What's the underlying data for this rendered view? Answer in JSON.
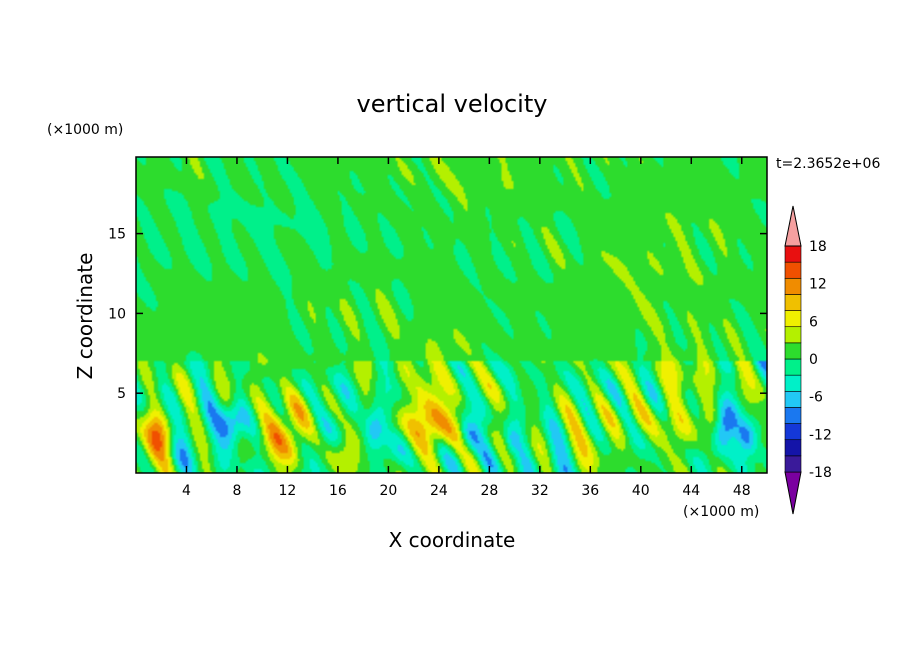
{
  "chart_data": {
    "type": "heatmap",
    "title": "vertical velocity",
    "xlabel": "X coordinate",
    "ylabel": "Z coordinate",
    "x_unit": "(×1000 m)",
    "y_unit": "(×1000 m)",
    "time_label": "t=2.3652e+06",
    "xlim": [
      0,
      50
    ],
    "ylim": [
      0,
      19.8
    ],
    "x_ticks": [
      4,
      8,
      12,
      16,
      20,
      24,
      28,
      32,
      36,
      40,
      44,
      48
    ],
    "y_ticks": [
      5,
      10,
      15
    ],
    "colorbar": {
      "levels": [
        -21,
        -18,
        -15,
        -12,
        -9,
        -6,
        -3,
        0,
        3,
        6,
        9,
        12,
        15,
        18,
        21
      ],
      "tick_labels": [
        -18,
        -12,
        -6,
        0,
        6,
        12,
        18
      ],
      "colors": [
        "#7a00a0",
        "#3a1a9a",
        "#1414a8",
        "#1438d8",
        "#1a78f0",
        "#22c8f5",
        "#00f0c8",
        "#00f08a",
        "#2ddc2d",
        "#b4f000",
        "#f0f000",
        "#f0c000",
        "#f08c00",
        "#f05000",
        "#e81010",
        "#f5a0a0"
      ],
      "extend": "both"
    },
    "background_value": 0,
    "features": [
      {
        "x": 0.0,
        "z": 19.0,
        "sx": 30,
        "sz": 2.0,
        "v": 1.5
      },
      {
        "x": 10,
        "z": 17.0,
        "sx": 6.0,
        "sz": 2.2,
        "v": -1.0
      },
      {
        "x": 28,
        "z": 18.0,
        "sx": 5.0,
        "sz": 3.5,
        "v": 1.2
      },
      {
        "x": 43,
        "z": 16.5,
        "sx": 4.0,
        "sz": 2.5,
        "v": 1.0
      },
      {
        "x": 5,
        "z": 9.5,
        "sx": 5.0,
        "sz": 2.0,
        "v": 1.4
      },
      {
        "x": 18,
        "z": 10.5,
        "sx": 5.0,
        "sz": 2.5,
        "v": 1.3
      },
      {
        "x": 33,
        "z": 9.5,
        "sx": 6.0,
        "sz": 2.0,
        "v": 1.2
      },
      {
        "x": 45,
        "z": 11.5,
        "sx": 5.0,
        "sz": 3.0,
        "v": 1.4
      },
      {
        "x": 38,
        "z": 12.5,
        "sx": 3.0,
        "sz": 2.0,
        "v": 1.3
      },
      {
        "x": 1.7,
        "z": 2.2,
        "sx": 1.0,
        "sz": 1.2,
        "v": 13
      },
      {
        "x": 7.6,
        "z": 3.0,
        "sx": 0.7,
        "sz": 1.0,
        "v": -11
      },
      {
        "x": 12.0,
        "z": 2.6,
        "sx": 1.3,
        "sz": 1.3,
        "v": 12
      },
      {
        "x": 17.0,
        "z": 1.6,
        "sx": 0.8,
        "sz": 1.0,
        "v": 8
      },
      {
        "x": 19.0,
        "z": 3.0,
        "sx": 0.6,
        "sz": 1.0,
        "v": -10
      },
      {
        "x": 23.2,
        "z": 3.2,
        "sx": 1.4,
        "sz": 1.5,
        "v": 13
      },
      {
        "x": 26.3,
        "z": 2.2,
        "sx": 0.6,
        "sz": 0.8,
        "v": -8
      },
      {
        "x": 29.7,
        "z": 2.0,
        "sx": 0.5,
        "sz": 0.7,
        "v": -6
      },
      {
        "x": 36.0,
        "z": 2.0,
        "sx": 2.5,
        "sz": 1.2,
        "v": 4
      },
      {
        "x": 42.5,
        "z": 3.0,
        "sx": 2.5,
        "sz": 1.5,
        "v": 5
      },
      {
        "x": 46.5,
        "z": 2.6,
        "sx": 0.6,
        "sz": 1.0,
        "v": -14
      },
      {
        "x": 48.5,
        "z": 2.3,
        "sx": 0.6,
        "sz": 0.8,
        "v": -9
      },
      {
        "x": 4.0,
        "z": 2.2,
        "sx": 1.2,
        "sz": 1.2,
        "v": -4
      },
      {
        "x": 15.0,
        "z": 2.4,
        "sx": 1.0,
        "sz": 1.5,
        "v": -4
      },
      {
        "x": 21.0,
        "z": 1.5,
        "sx": 0.8,
        "sz": 1.0,
        "v": -5
      },
      {
        "x": 33.0,
        "z": 1.0,
        "sx": 1.5,
        "sz": 1.0,
        "v": -4
      },
      {
        "x": 40.0,
        "z": 2.0,
        "sx": 1.0,
        "sz": 1.2,
        "v": -4
      },
      {
        "x": 10.0,
        "z": 6.5,
        "sx": 1.0,
        "sz": 1.0,
        "v": 3
      },
      {
        "x": 24.0,
        "z": 7.5,
        "sx": 1.5,
        "sz": 1.0,
        "v": 3
      },
      {
        "x": 44.0,
        "z": 6.5,
        "sx": 2.0,
        "sz": 1.0,
        "v": 3
      }
    ]
  }
}
